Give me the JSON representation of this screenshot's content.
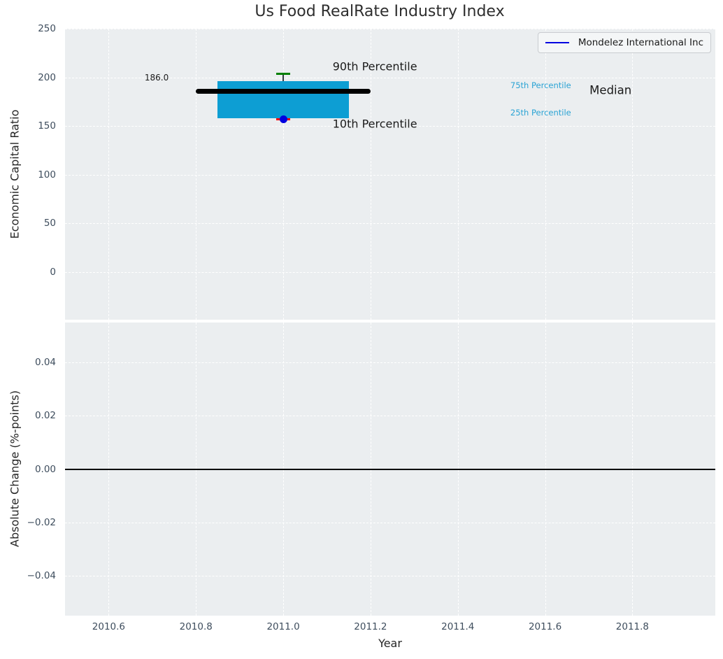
{
  "title": "Us Food RealRate Industry Index",
  "legend": {
    "label": "Mondelez International Inc",
    "line_color": "#0000e0",
    "position": "upper right"
  },
  "axes": {
    "top": {
      "ylabel": "Economic Capital Ratio"
    },
    "bottom": {
      "ylabel": "Absolute Change (%-points)",
      "xlabel": "Year"
    }
  },
  "chart_data": [
    {
      "type": "boxplot",
      "title": "Us Food RealRate Industry Index",
      "xlabel": "Year",
      "ylabel": "Economic Capital Ratio",
      "xlim": [
        2010.5,
        2011.99
      ],
      "ylim": [
        -49,
        250
      ],
      "grid": true,
      "legend_entries": [
        "Mondelez International Inc"
      ],
      "legend_position": "upper right",
      "xticks": [
        {
          "v": 2010.6,
          "label": "2010.6"
        },
        {
          "v": 2010.8,
          "label": "2010.8"
        },
        {
          "v": 2011.0,
          "label": "2011.0"
        },
        {
          "v": 2011.2,
          "label": "2011.2"
        },
        {
          "v": 2011.4,
          "label": "2011.4"
        },
        {
          "v": 2011.6,
          "label": "2011.6"
        },
        {
          "v": 2011.8,
          "label": "2011.8"
        }
      ],
      "yticks": [
        {
          "v": 250,
          "label": "250"
        },
        {
          "v": 200,
          "label": "200"
        },
        {
          "v": 150,
          "label": "150"
        },
        {
          "v": 100,
          "label": "100"
        },
        {
          "v": 50,
          "label": "50"
        },
        {
          "v": 0,
          "label": "0"
        }
      ],
      "box": {
        "x": 2011.0,
        "median": 186.0,
        "p25": 158,
        "p75": 196,
        "p10": 157,
        "p90": 204,
        "box_halfwidth": 0.15,
        "median_halfwidth": 0.2,
        "colors": {
          "box": "#0d9ed3",
          "median": "#000000",
          "p90_cap": "#008000",
          "p10_cap": "#ff0000",
          "whisker": "#333a40"
        }
      },
      "company_point": {
        "name": "Mondelez International Inc",
        "x": 2011.0,
        "y": 157,
        "color": "#0000e0"
      },
      "annotations": [
        {
          "text": "186.0",
          "x": 2010.71,
          "y": 200,
          "size": 12,
          "color": "#1a1a1a"
        },
        {
          "text": "90th Percentile",
          "x": 2011.21,
          "y": 211,
          "size": 16,
          "color": "#1a1a1a"
        },
        {
          "text": "10th Percentile",
          "x": 2011.21,
          "y": 152,
          "size": 16,
          "color": "#1a1a1a"
        },
        {
          "text": "75th Percentile",
          "x": 2011.59,
          "y": 192,
          "size": 11.5,
          "color": "#2aa3d4"
        },
        {
          "text": "25th Percentile",
          "x": 2011.59,
          "y": 163.5,
          "size": 11.5,
          "color": "#2aa3d4"
        },
        {
          "text": "Median",
          "x": 2011.75,
          "y": 186.5,
          "size": 16.5,
          "color": "#1a1a1a"
        }
      ]
    },
    {
      "type": "line",
      "title": "",
      "xlabel": "Year",
      "ylabel": "Absolute Change (%-points)",
      "xlim": [
        2010.5,
        2011.99
      ],
      "ylim": [
        -0.055,
        0.055
      ],
      "grid": true,
      "axhline": 0.0,
      "series": [],
      "xticks": [
        {
          "v": 2010.6,
          "label": "2010.6"
        },
        {
          "v": 2010.8,
          "label": "2010.8"
        },
        {
          "v": 2011.0,
          "label": "2011.0"
        },
        {
          "v": 2011.2,
          "label": "2011.2"
        },
        {
          "v": 2011.4,
          "label": "2011.4"
        },
        {
          "v": 2011.6,
          "label": "2011.6"
        },
        {
          "v": 2011.8,
          "label": "2011.8"
        }
      ],
      "yticks": [
        {
          "v": 0.04,
          "label": "0.04"
        },
        {
          "v": 0.02,
          "label": "0.02"
        },
        {
          "v": 0.0,
          "label": "0.00"
        },
        {
          "v": -0.02,
          "label": "−0.02"
        },
        {
          "v": -0.04,
          "label": "−0.04"
        }
      ]
    }
  ]
}
